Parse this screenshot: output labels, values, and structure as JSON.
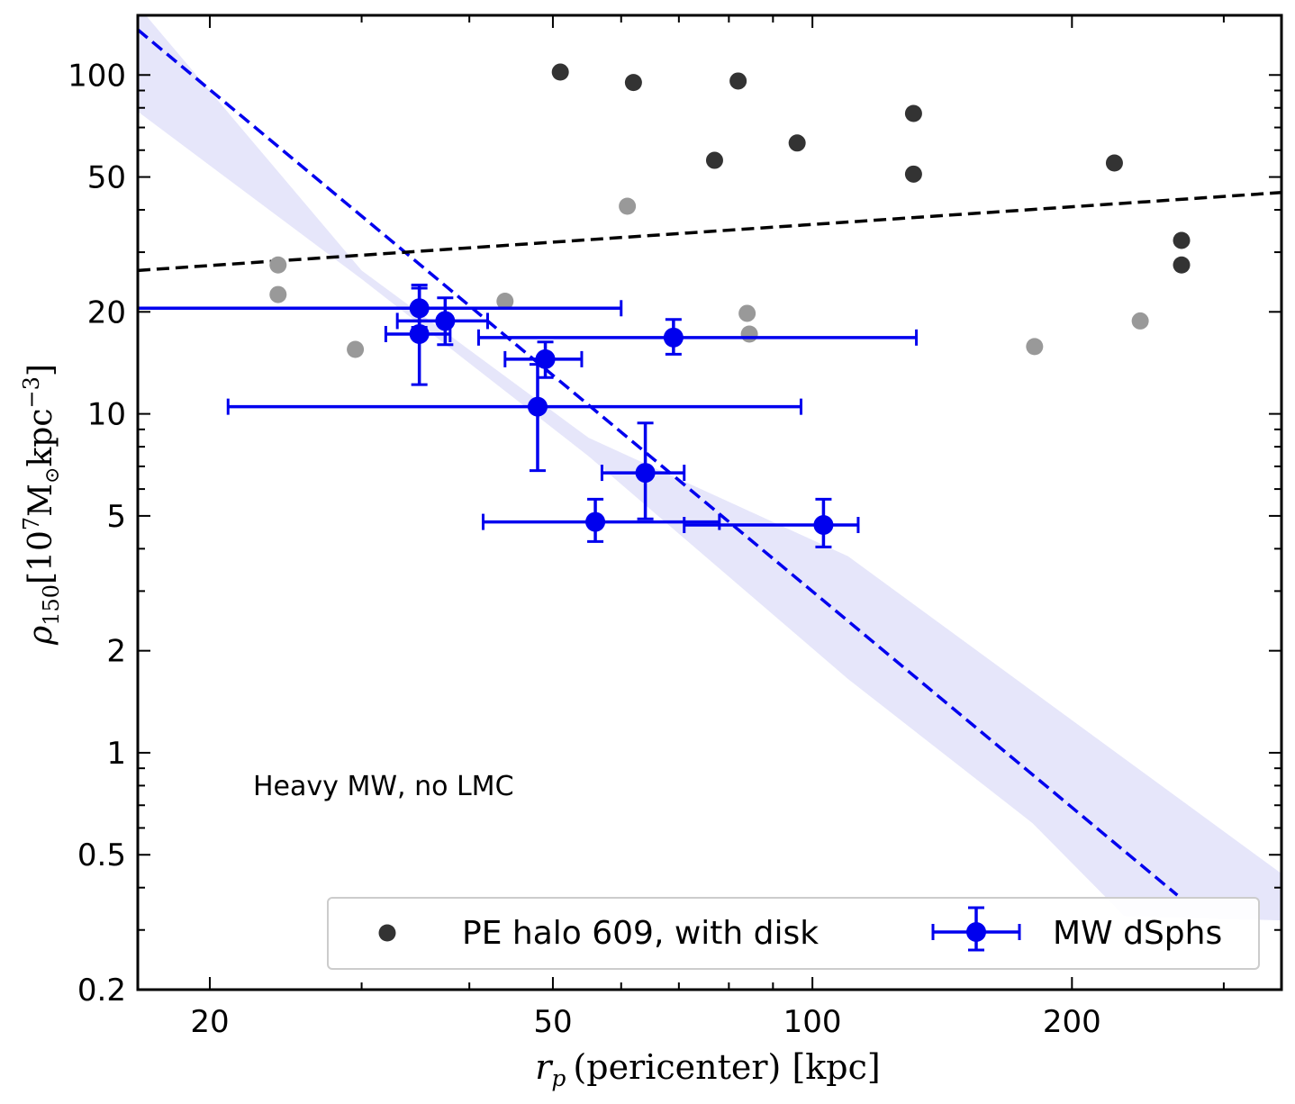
{
  "chart_data": {
    "type": "scatter",
    "title": "",
    "xlabel": {
      "symbol": "r",
      "subscript": "p",
      "rest": "(pericenter) [kpc]"
    },
    "ylabel": {
      "symbol": "ρ",
      "subscript": "150",
      "bracket_open": "[10",
      "power": "7",
      "unit_mid": "M",
      "sun": "⊙",
      "unit_tail": "kpc",
      "neg_power": "−3",
      "bracket_close": "]"
    },
    "x_scale": "log",
    "y_scale": "log",
    "xlim": [
      16.5,
      350
    ],
    "ylim": [
      0.2,
      150
    ],
    "x_ticks": [
      {
        "value": 20,
        "label": "20"
      },
      {
        "value": 50,
        "label": "50"
      },
      {
        "value": 100,
        "label": "100"
      },
      {
        "value": 200,
        "label": "200"
      }
    ],
    "y_ticks": [
      {
        "value": 0.2,
        "label": "0.2"
      },
      {
        "value": 0.5,
        "label": "0.5"
      },
      {
        "value": 1,
        "label": "1"
      },
      {
        "value": 2,
        "label": "2"
      },
      {
        "value": 5,
        "label": "5"
      },
      {
        "value": 10,
        "label": "10"
      },
      {
        "value": 20,
        "label": "20"
      },
      {
        "value": 50,
        "label": "50"
      },
      {
        "value": 100,
        "label": "100"
      }
    ],
    "annotation": "Heavy MW, no LMC",
    "grid": false,
    "legend_position": "bottom-right",
    "legend": [
      {
        "label": "PE halo 609, with disk",
        "marker": "dot",
        "color": "#333333"
      },
      {
        "label": "MW dSphs",
        "marker": "dot-errorbar",
        "color": "#0000ee"
      }
    ],
    "series": [
      {
        "name": "PE halo 609, with disk",
        "color": "#333333",
        "points": [
          {
            "x": 51,
            "y": 102
          },
          {
            "x": 62,
            "y": 95
          },
          {
            "x": 82,
            "y": 96
          },
          {
            "x": 77,
            "y": 56
          },
          {
            "x": 96,
            "y": 63
          },
          {
            "x": 131,
            "y": 77
          },
          {
            "x": 131,
            "y": 51
          },
          {
            "x": 224,
            "y": 55
          },
          {
            "x": 268,
            "y": 32.5
          },
          {
            "x": 268,
            "y": 27.5
          }
        ]
      },
      {
        "color": "#999999",
        "points": [
          {
            "x": 61,
            "y": 41
          },
          {
            "x": 24,
            "y": 27.5
          },
          {
            "x": 24,
            "y": 22.5
          },
          {
            "x": 29.5,
            "y": 15.5
          },
          {
            "x": 44,
            "y": 21.5
          },
          {
            "x": 84,
            "y": 19.8
          },
          {
            "x": 84.5,
            "y": 17.2
          },
          {
            "x": 181,
            "y": 15.8
          },
          {
            "x": 240,
            "y": 18.8
          }
        ]
      },
      {
        "name": "MW dSphs",
        "color": "#0000ee",
        "points": [
          {
            "x": 35,
            "y": 20.5,
            "xerr": [
              14,
              60
            ],
            "yerr": [
              18.0,
              23.5
            ]
          },
          {
            "x": 37.5,
            "y": 18.8,
            "xerr": [
              33,
              42
            ],
            "yerr": [
              16,
              22
            ]
          },
          {
            "x": 35,
            "y": 17.2,
            "xerr": [
              32,
              38
            ],
            "yerr": [
              12.2,
              24
            ]
          },
          {
            "x": 69,
            "y": 16.8,
            "xerr": [
              41,
              132
            ],
            "yerr": [
              15,
              19
            ]
          },
          {
            "x": 49,
            "y": 14.5,
            "xerr": [
              44,
              54
            ],
            "yerr": [
              12.8,
              16.3
            ]
          },
          {
            "x": 48,
            "y": 10.5,
            "xerr": [
              21,
              97
            ],
            "yerr": [
              6.8,
              14
            ]
          },
          {
            "x": 64,
            "y": 6.7,
            "xerr": [
              57,
              71
            ],
            "yerr": [
              4.9,
              9.4
            ]
          },
          {
            "x": 56,
            "y": 4.8,
            "xerr": [
              41.5,
              78
            ],
            "yerr": [
              4.2,
              5.6
            ]
          },
          {
            "x": 103,
            "y": 4.7,
            "xerr": [
              71,
              113
            ],
            "yerr": [
              4.05,
              5.6
            ]
          }
        ]
      }
    ],
    "fit_lines": [
      {
        "color": "#0000ee",
        "style": "dashed",
        "points": [
          {
            "x": 16.5,
            "y": 136
          },
          {
            "x": 265,
            "y": 0.38
          }
        ]
      },
      {
        "color": "#000000",
        "style": "dashed",
        "points": [
          {
            "x": 16.5,
            "y": 26.5
          },
          {
            "x": 350,
            "y": 45
          }
        ]
      }
    ],
    "confidence_band": {
      "color": "#e6e6fa",
      "upper": [
        {
          "x": 16.5,
          "y": 160
        },
        {
          "x": 30,
          "y": 26.5
        },
        {
          "x": 55,
          "y": 8.5
        },
        {
          "x": 110,
          "y": 3.8
        },
        {
          "x": 350,
          "y": 0.44
        }
      ],
      "lower": [
        {
          "x": 16.5,
          "y": 78
        },
        {
          "x": 30,
          "y": 25
        },
        {
          "x": 55,
          "y": 7.5
        },
        {
          "x": 110,
          "y": 1.65
        },
        {
          "x": 180,
          "y": 0.62
        },
        {
          "x": 230,
          "y": 0.33
        },
        {
          "x": 350,
          "y": 0.32
        }
      ]
    }
  }
}
